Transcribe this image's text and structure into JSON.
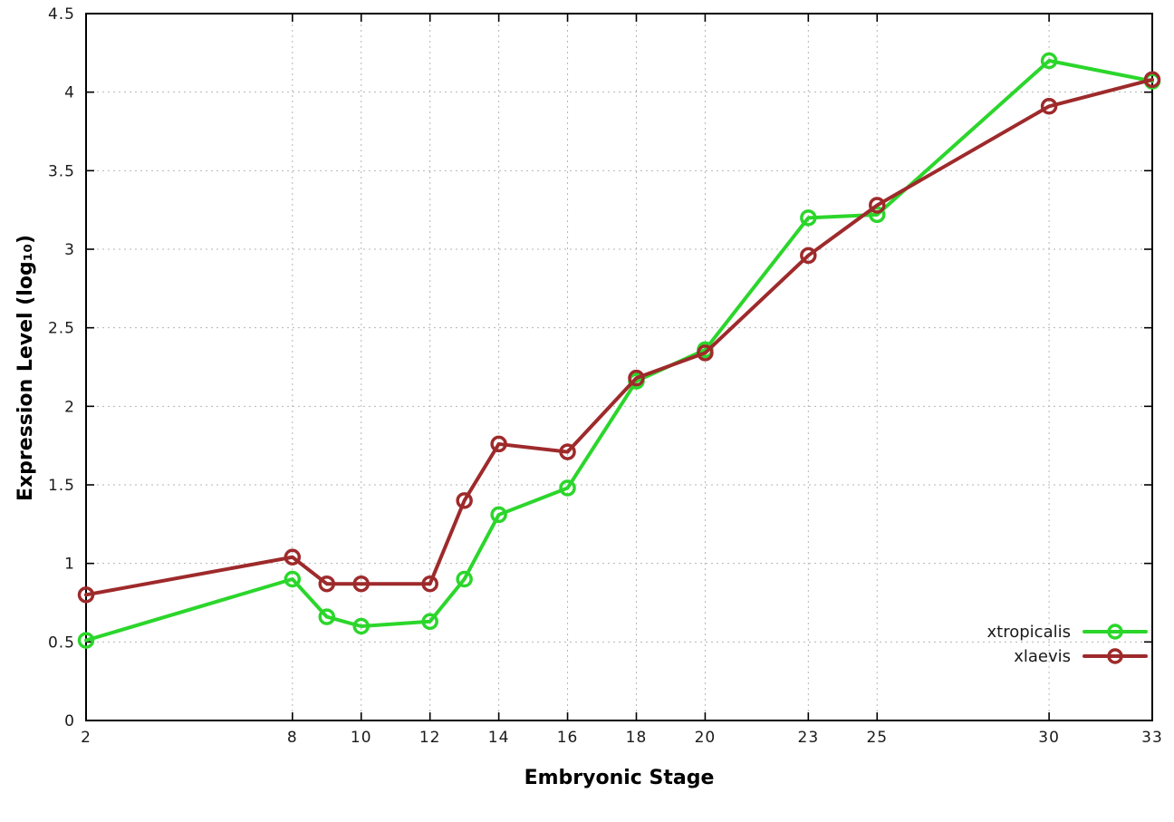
{
  "chart_data": {
    "type": "line",
    "title": "",
    "xlabel": "Embryonic Stage",
    "ylabel": "Expression Level (log₁₀)",
    "xlim": [
      2,
      33
    ],
    "ylim": [
      0,
      4.5
    ],
    "xticks": [
      2,
      8,
      10,
      12,
      14,
      16,
      18,
      20,
      23,
      25,
      30,
      33
    ],
    "yticks": [
      0,
      0.5,
      1,
      1.5,
      2,
      2.5,
      3,
      3.5,
      4,
      4.5
    ],
    "x": [
      2,
      8,
      9,
      10,
      12,
      13,
      14,
      16,
      18,
      20,
      23,
      25,
      30,
      33
    ],
    "grid": true,
    "legend_position": "inside-bottom-right",
    "background": "#ffffff",
    "series": [
      {
        "name": "xtropicalis",
        "color": "#2bd62b",
        "values": [
          0.51,
          0.9,
          0.66,
          0.6,
          0.63,
          0.9,
          1.31,
          1.48,
          2.16,
          2.36,
          3.2,
          3.22,
          4.2,
          4.07
        ]
      },
      {
        "name": "xlaevis",
        "color": "#9e2a2b",
        "values": [
          0.8,
          1.04,
          0.87,
          0.87,
          0.87,
          1.4,
          1.76,
          1.71,
          2.18,
          2.34,
          2.96,
          3.28,
          3.91,
          4.08
        ]
      }
    ]
  }
}
